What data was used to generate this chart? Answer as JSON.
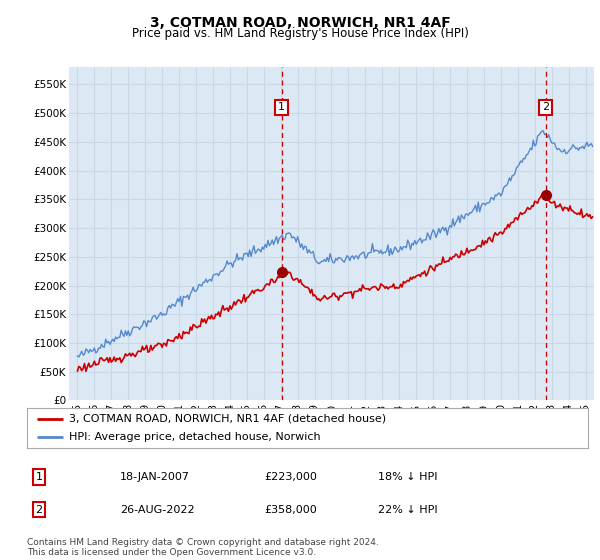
{
  "title": "3, COTMAN ROAD, NORWICH, NR1 4AF",
  "subtitle": "Price paid vs. HM Land Registry's House Price Index (HPI)",
  "ylabel_ticks": [
    "£0",
    "£50K",
    "£100K",
    "£150K",
    "£200K",
    "£250K",
    "£300K",
    "£350K",
    "£400K",
    "£450K",
    "£500K",
    "£550K"
  ],
  "ytick_values": [
    0,
    50000,
    100000,
    150000,
    200000,
    250000,
    300000,
    350000,
    400000,
    450000,
    500000,
    550000
  ],
  "ylim": [
    0,
    580000
  ],
  "bg_color": "#dce9f5",
  "grid_color": "#c8d8e8",
  "line1_color": "#cc0000",
  "line2_color": "#5588cc",
  "vline_color": "#cc0000",
  "marker_color": "#990000",
  "sale1_year": 2007.05,
  "sale1_price": 223000,
  "sale2_year": 2022.65,
  "sale2_price": 358000,
  "legend1": "3, COTMAN ROAD, NORWICH, NR1 4AF (detached house)",
  "legend2": "HPI: Average price, detached house, Norwich",
  "table_row1_num": "1",
  "table_row1_date": "18-JAN-2007",
  "table_row1_price": "£223,000",
  "table_row1_hpi": "18% ↓ HPI",
  "table_row2_num": "2",
  "table_row2_date": "26-AUG-2022",
  "table_row2_price": "£358,000",
  "table_row2_hpi": "22% ↓ HPI",
  "footnote": "Contains HM Land Registry data © Crown copyright and database right 2024.\nThis data is licensed under the Open Government Licence v3.0.",
  "xmin": 1994.5,
  "xmax": 2025.5
}
